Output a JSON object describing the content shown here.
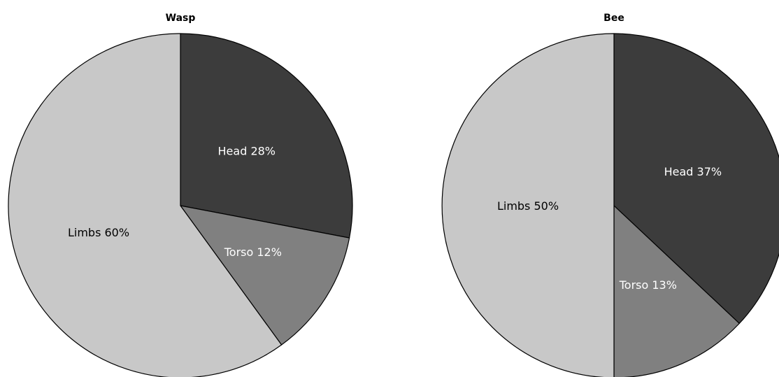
{
  "chart_data": [
    {
      "type": "pie",
      "title": "Wasp",
      "start_angle_deg": 90,
      "direction": "clockwise",
      "slices": [
        {
          "label": "Head",
          "value": 28,
          "display": "Head 28%",
          "color": "#3c3c3c",
          "text_color": "#ffffff"
        },
        {
          "label": "Torso",
          "value": 12,
          "display": "Torso 12%",
          "color": "#808080",
          "text_color": "#ffffff"
        },
        {
          "label": "Limbs",
          "value": 60,
          "display": "Limbs 60%",
          "color": "#c8c8c8",
          "text_color": "#000000"
        }
      ]
    },
    {
      "type": "pie",
      "title": "Bee",
      "start_angle_deg": 90,
      "direction": "clockwise",
      "slices": [
        {
          "label": "Head",
          "value": 37,
          "display": "Head 37%",
          "color": "#3c3c3c",
          "text_color": "#ffffff"
        },
        {
          "label": "Torso",
          "value": 13,
          "display": "Torso 13%",
          "color": "#808080",
          "text_color": "#ffffff"
        },
        {
          "label": "Limbs",
          "value": 50,
          "display": "Limbs 50%",
          "color": "#c8c8c8",
          "text_color": "#000000"
        }
      ]
    }
  ]
}
